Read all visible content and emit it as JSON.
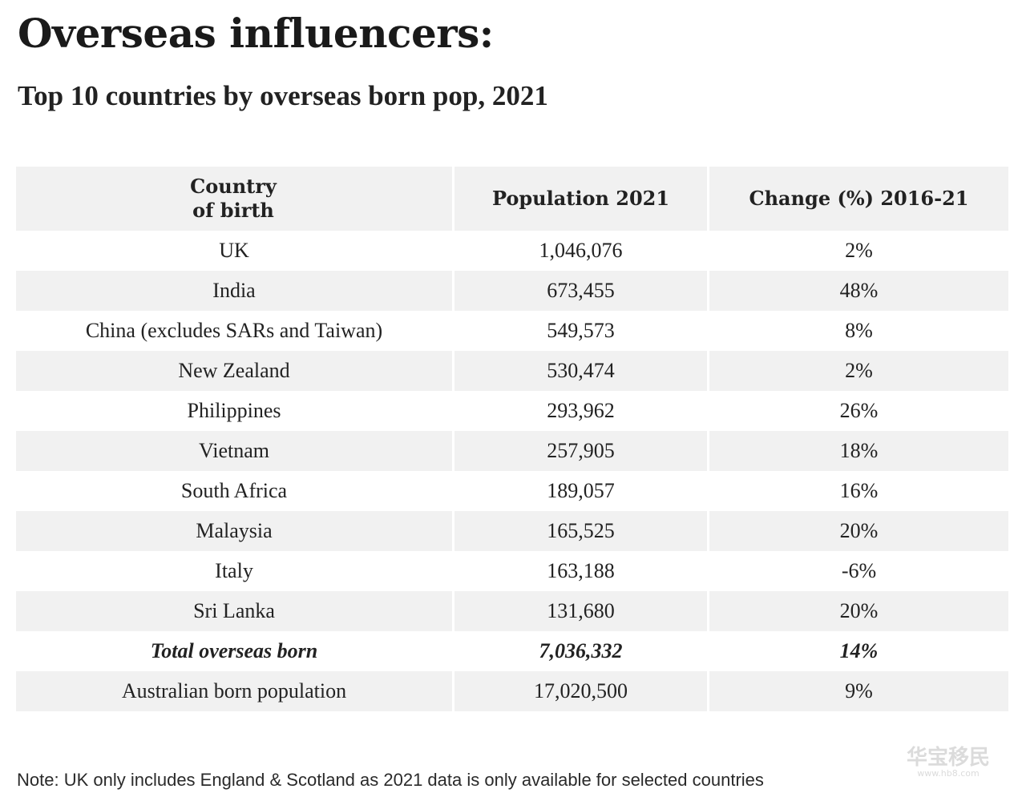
{
  "title": "Overseas influencers:",
  "subtitle": "Top 10 countries by overseas born pop, 2021",
  "chart_data": {
    "type": "table",
    "columns": [
      "Country\nof birth",
      "Population 2021",
      "Change (%) 2016-21"
    ],
    "rows": [
      {
        "country": "UK",
        "population": "1,046,076",
        "change": "2%"
      },
      {
        "country": "India",
        "population": "673,455",
        "change": "48%"
      },
      {
        "country": "China (excludes SARs and Taiwan)",
        "population": "549,573",
        "change": "8%"
      },
      {
        "country": "New Zealand",
        "population": "530,474",
        "change": "2%"
      },
      {
        "country": "Philippines",
        "population": "293,962",
        "change": "26%"
      },
      {
        "country": "Vietnam",
        "population": "257,905",
        "change": "18%"
      },
      {
        "country": "South Africa",
        "population": "189,057",
        "change": "16%"
      },
      {
        "country": "Malaysia",
        "population": "165,525",
        "change": "20%"
      },
      {
        "country": "Italy",
        "population": "163,188",
        "change": "-6%"
      },
      {
        "country": "Sri Lanka",
        "population": "131,680",
        "change": "20%"
      },
      {
        "country": "Total overseas born",
        "population": "7,036,332",
        "change": "14%",
        "emphasis": true
      },
      {
        "country": "Australian born population",
        "population": "17,020,500",
        "change": "9%"
      }
    ]
  },
  "note": "Note: UK only includes England & Scotland as 2021 data is only available for selected countries",
  "watermark": {
    "text": "华宝移民",
    "url_text": "www.hb8.com"
  }
}
